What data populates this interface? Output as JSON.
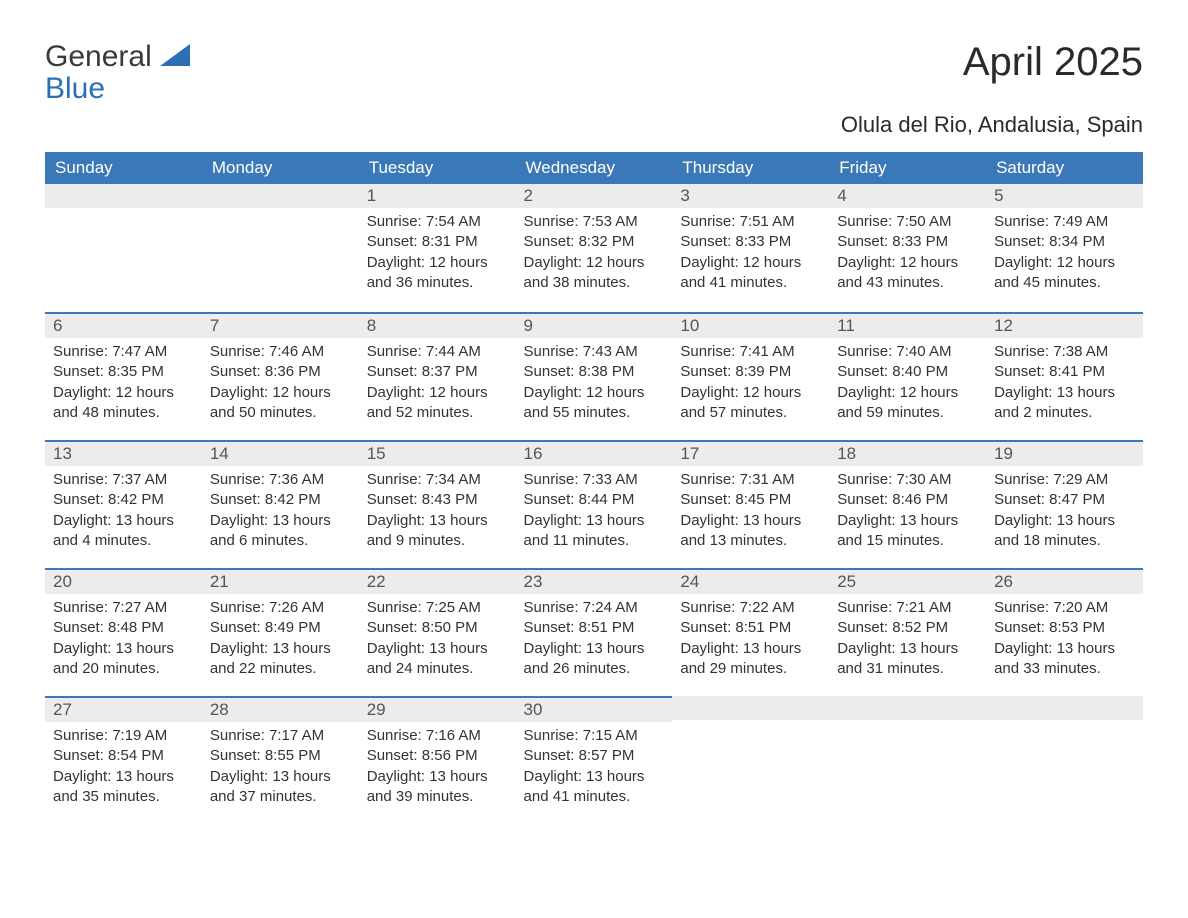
{
  "logo": {
    "line1": "General",
    "line2": "Blue"
  },
  "title": "April 2025",
  "subtitle": "Olula del Rio, Andalusia, Spain",
  "colors": {
    "header_bg": "#3a78b8",
    "header_text": "#ffffff",
    "daynum_bg": "#ececec",
    "week_border": "#3a78b8",
    "logo_blue": "#2c6fb5",
    "text": "#333333"
  },
  "day_names": [
    "Sunday",
    "Monday",
    "Tuesday",
    "Wednesday",
    "Thursday",
    "Friday",
    "Saturday"
  ],
  "weeks": [
    [
      {
        "empty": true
      },
      {
        "empty": true
      },
      {
        "n": "1",
        "sunrise": "7:54 AM",
        "sunset": "8:31 PM",
        "daylight": "12 hours and 36 minutes."
      },
      {
        "n": "2",
        "sunrise": "7:53 AM",
        "sunset": "8:32 PM",
        "daylight": "12 hours and 38 minutes."
      },
      {
        "n": "3",
        "sunrise": "7:51 AM",
        "sunset": "8:33 PM",
        "daylight": "12 hours and 41 minutes."
      },
      {
        "n": "4",
        "sunrise": "7:50 AM",
        "sunset": "8:33 PM",
        "daylight": "12 hours and 43 minutes."
      },
      {
        "n": "5",
        "sunrise": "7:49 AM",
        "sunset": "8:34 PM",
        "daylight": "12 hours and 45 minutes."
      }
    ],
    [
      {
        "n": "6",
        "sunrise": "7:47 AM",
        "sunset": "8:35 PM",
        "daylight": "12 hours and 48 minutes."
      },
      {
        "n": "7",
        "sunrise": "7:46 AM",
        "sunset": "8:36 PM",
        "daylight": "12 hours and 50 minutes."
      },
      {
        "n": "8",
        "sunrise": "7:44 AM",
        "sunset": "8:37 PM",
        "daylight": "12 hours and 52 minutes."
      },
      {
        "n": "9",
        "sunrise": "7:43 AM",
        "sunset": "8:38 PM",
        "daylight": "12 hours and 55 minutes."
      },
      {
        "n": "10",
        "sunrise": "7:41 AM",
        "sunset": "8:39 PM",
        "daylight": "12 hours and 57 minutes."
      },
      {
        "n": "11",
        "sunrise": "7:40 AM",
        "sunset": "8:40 PM",
        "daylight": "12 hours and 59 minutes."
      },
      {
        "n": "12",
        "sunrise": "7:38 AM",
        "sunset": "8:41 PM",
        "daylight": "13 hours and 2 minutes."
      }
    ],
    [
      {
        "n": "13",
        "sunrise": "7:37 AM",
        "sunset": "8:42 PM",
        "daylight": "13 hours and 4 minutes."
      },
      {
        "n": "14",
        "sunrise": "7:36 AM",
        "sunset": "8:42 PM",
        "daylight": "13 hours and 6 minutes."
      },
      {
        "n": "15",
        "sunrise": "7:34 AM",
        "sunset": "8:43 PM",
        "daylight": "13 hours and 9 minutes."
      },
      {
        "n": "16",
        "sunrise": "7:33 AM",
        "sunset": "8:44 PM",
        "daylight": "13 hours and 11 minutes."
      },
      {
        "n": "17",
        "sunrise": "7:31 AM",
        "sunset": "8:45 PM",
        "daylight": "13 hours and 13 minutes."
      },
      {
        "n": "18",
        "sunrise": "7:30 AM",
        "sunset": "8:46 PM",
        "daylight": "13 hours and 15 minutes."
      },
      {
        "n": "19",
        "sunrise": "7:29 AM",
        "sunset": "8:47 PM",
        "daylight": "13 hours and 18 minutes."
      }
    ],
    [
      {
        "n": "20",
        "sunrise": "7:27 AM",
        "sunset": "8:48 PM",
        "daylight": "13 hours and 20 minutes."
      },
      {
        "n": "21",
        "sunrise": "7:26 AM",
        "sunset": "8:49 PM",
        "daylight": "13 hours and 22 minutes."
      },
      {
        "n": "22",
        "sunrise": "7:25 AM",
        "sunset": "8:50 PM",
        "daylight": "13 hours and 24 minutes."
      },
      {
        "n": "23",
        "sunrise": "7:24 AM",
        "sunset": "8:51 PM",
        "daylight": "13 hours and 26 minutes."
      },
      {
        "n": "24",
        "sunrise": "7:22 AM",
        "sunset": "8:51 PM",
        "daylight": "13 hours and 29 minutes."
      },
      {
        "n": "25",
        "sunrise": "7:21 AM",
        "sunset": "8:52 PM",
        "daylight": "13 hours and 31 minutes."
      },
      {
        "n": "26",
        "sunrise": "7:20 AM",
        "sunset": "8:53 PM",
        "daylight": "13 hours and 33 minutes."
      }
    ],
    [
      {
        "n": "27",
        "sunrise": "7:19 AM",
        "sunset": "8:54 PM",
        "daylight": "13 hours and 35 minutes."
      },
      {
        "n": "28",
        "sunrise": "7:17 AM",
        "sunset": "8:55 PM",
        "daylight": "13 hours and 37 minutes."
      },
      {
        "n": "29",
        "sunrise": "7:16 AM",
        "sunset": "8:56 PM",
        "daylight": "13 hours and 39 minutes."
      },
      {
        "n": "30",
        "sunrise": "7:15 AM",
        "sunset": "8:57 PM",
        "daylight": "13 hours and 41 minutes."
      },
      {
        "empty": true
      },
      {
        "empty": true
      },
      {
        "empty": true
      }
    ]
  ],
  "labels": {
    "sunrise_prefix": "Sunrise: ",
    "sunset_prefix": "Sunset: ",
    "daylight_prefix": "Daylight: "
  }
}
